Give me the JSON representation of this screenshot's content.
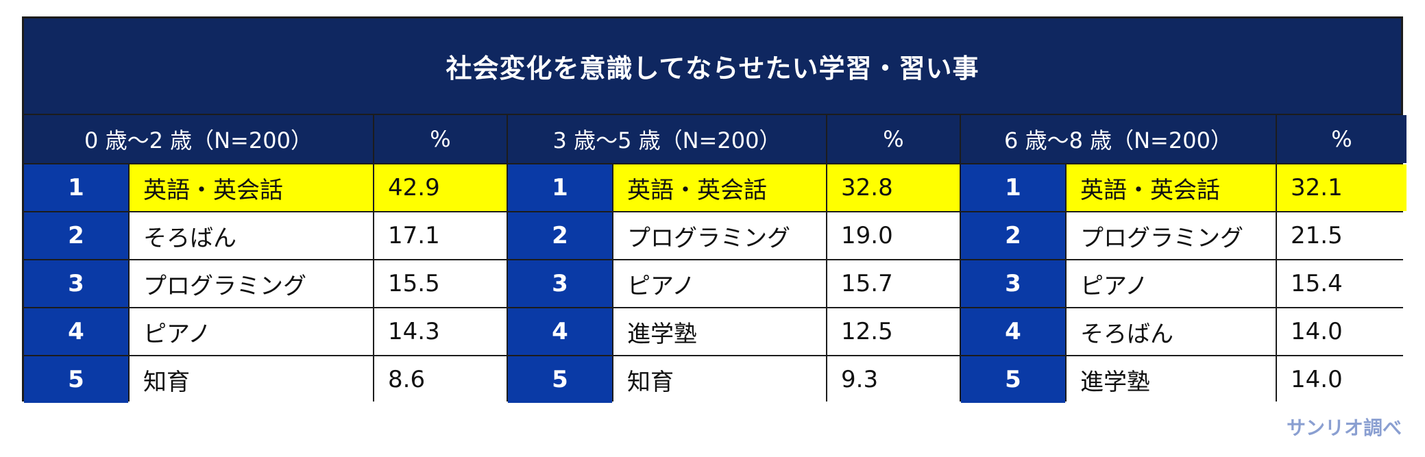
{
  "title": "社会変化を意識してならせたい学習・習い事",
  "percent_label": "%",
  "groups": [
    {
      "header": "0 歳～2 歳（N=200）",
      "rows": [
        {
          "rank": "1",
          "item": "英語・英会話",
          "value": "42.9"
        },
        {
          "rank": "2",
          "item": "そろばん",
          "value": "17.1"
        },
        {
          "rank": "3",
          "item": "プログラミング",
          "value": "15.5"
        },
        {
          "rank": "4",
          "item": "ピアノ",
          "value": "14.3"
        },
        {
          "rank": "5",
          "item": "知育",
          "value": "8.6"
        }
      ]
    },
    {
      "header": "3 歳～5 歳（N=200）",
      "rows": [
        {
          "rank": "1",
          "item": "英語・英会話",
          "value": "32.8"
        },
        {
          "rank": "2",
          "item": "プログラミング",
          "value": "19.0"
        },
        {
          "rank": "3",
          "item": "ピアノ",
          "value": "15.7"
        },
        {
          "rank": "4",
          "item": "進学塾",
          "value": "12.5"
        },
        {
          "rank": "5",
          "item": "知育",
          "value": "9.3"
        }
      ]
    },
    {
      "header": "6 歳～8 歳（N=200）",
      "rows": [
        {
          "rank": "1",
          "item": "英語・英会話",
          "value": "32.1"
        },
        {
          "rank": "2",
          "item": "プログラミング",
          "value": "21.5"
        },
        {
          "rank": "3",
          "item": "ピアノ",
          "value": "15.4"
        },
        {
          "rank": "4",
          "item": "そろばん",
          "value": "14.0"
        },
        {
          "rank": "5",
          "item": "進学塾",
          "value": "14.0"
        }
      ]
    }
  ],
  "source": "サンリオ調べ",
  "colors": {
    "header_navy": "#0f2760",
    "rank_blue": "#0a3aa6",
    "highlight_yellow": "#ffff00",
    "source_text": "#8a9fd1"
  }
}
